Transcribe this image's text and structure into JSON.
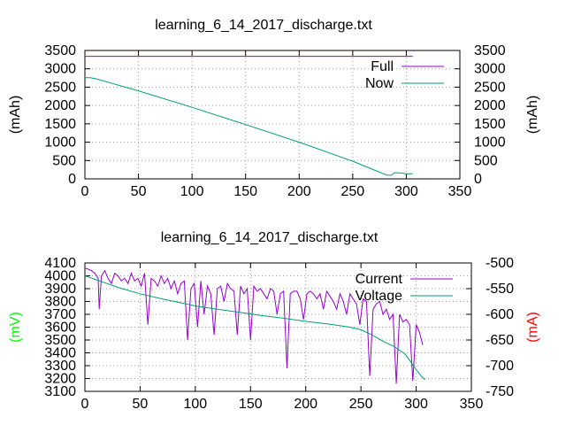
{
  "colors": {
    "full": "#9400d3",
    "now": "#009e73",
    "current": "#9400d3",
    "voltage": "#009e73",
    "mv_label": "#00ff00",
    "ma_label": "#ff0000"
  },
  "chart_data": [
    {
      "type": "line",
      "title": "learning_6_14_2017_discharge.txt",
      "xlabel": "",
      "ylabel": "(mAh)",
      "y2label": "(mAh)",
      "xlim": [
        0,
        350
      ],
      "ylim": [
        0,
        3500
      ],
      "y2lim": [
        0,
        3500
      ],
      "xticks": [
        "0",
        "50",
        "100",
        "150",
        "200",
        "250",
        "300",
        "350"
      ],
      "yticks": [
        "0",
        "500",
        "1000",
        "1500",
        "2000",
        "2500",
        "3000",
        "3500"
      ],
      "y2ticks": [
        "0",
        "500",
        "1000",
        "1500",
        "2000",
        "2500",
        "3000",
        "3500"
      ],
      "grid": true,
      "legend_position": "top-right",
      "series": [
        {
          "name": "Full",
          "axis": "y",
          "x": [
            0,
            306
          ],
          "values": [
            3340,
            3340
          ]
        },
        {
          "name": "Now",
          "axis": "y",
          "x": [
            0,
            5,
            10,
            50,
            100,
            150,
            200,
            250,
            282,
            286,
            289,
            295,
            300,
            306
          ],
          "values": [
            2760,
            2760,
            2730,
            2400,
            1950,
            1480,
            1000,
            480,
            100,
            100,
            170,
            160,
            140,
            140
          ]
        }
      ]
    },
    {
      "type": "line",
      "title": "learning_6_14_2017_discharge.txt",
      "xlabel": "",
      "ylabel": "(mV)",
      "y2label": "(mA)",
      "xlim": [
        0,
        350
      ],
      "ylim": [
        3100,
        4100
      ],
      "y2lim": [
        -750,
        -500
      ],
      "xticks": [
        "0",
        "50",
        "100",
        "150",
        "200",
        "250",
        "300",
        "350"
      ],
      "yticks": [
        "3100",
        "3200",
        "3300",
        "3400",
        "3500",
        "3600",
        "3700",
        "3800",
        "3900",
        "4000",
        "4100"
      ],
      "y2ticks": [
        "-750",
        "-700",
        "-650",
        "-600",
        "-550",
        "-500"
      ],
      "grid": true,
      "legend_position": "top-right",
      "series": [
        {
          "name": "Current",
          "axis": "y2",
          "x": [
            0,
            3,
            6,
            9,
            12,
            13,
            15,
            18,
            21,
            24,
            27,
            30,
            33,
            36,
            39,
            42,
            45,
            48,
            51,
            54,
            57,
            60,
            63,
            66,
            69,
            72,
            75,
            78,
            81,
            84,
            87,
            90,
            93,
            96,
            99,
            102,
            105,
            108,
            111,
            114,
            117,
            120,
            123,
            126,
            129,
            132,
            135,
            138,
            141,
            144,
            147,
            150,
            153,
            156,
            159,
            162,
            165,
            168,
            171,
            174,
            177,
            180,
            183,
            186,
            189,
            192,
            195,
            198,
            201,
            204,
            207,
            210,
            213,
            216,
            219,
            222,
            225,
            228,
            231,
            234,
            237,
            240,
            243,
            246,
            249,
            252,
            255,
            258,
            261,
            264,
            267,
            270,
            273,
            276,
            279,
            282,
            285,
            288,
            291,
            294,
            297,
            300,
            303,
            306
          ],
          "values": [
            -510,
            -512,
            -515,
            -520,
            -530,
            -590,
            -525,
            -515,
            -530,
            -540,
            -520,
            -525,
            -535,
            -530,
            -540,
            -520,
            -535,
            -530,
            -545,
            -520,
            -620,
            -530,
            -535,
            -545,
            -525,
            -540,
            -530,
            -550,
            -535,
            -560,
            -540,
            -535,
            -650,
            -550,
            -540,
            -625,
            -535,
            -600,
            -545,
            -560,
            -640,
            -550,
            -545,
            -575,
            -540,
            -550,
            -555,
            -640,
            -545,
            -560,
            -550,
            -650,
            -545,
            -555,
            -550,
            -560,
            -570,
            -550,
            -555,
            -600,
            -560,
            -555,
            -705,
            -560,
            -555,
            -555,
            -570,
            -610,
            -560,
            -555,
            -560,
            -570,
            -560,
            -590,
            -555,
            -565,
            -575,
            -590,
            -560,
            -575,
            -600,
            -560,
            -570,
            -580,
            -620,
            -570,
            -575,
            -720,
            -590,
            -580,
            -575,
            -600,
            -590,
            -610,
            -600,
            -735,
            -600,
            -615,
            -610,
            -620,
            -730,
            -620,
            -635,
            -660
          ]
        },
        {
          "name": "Voltage",
          "axis": "y",
          "x": [
            0,
            5,
            10,
            20,
            30,
            50,
            70,
            90,
            100,
            120,
            140,
            160,
            180,
            200,
            220,
            240,
            250,
            260,
            270,
            280,
            290,
            295,
            300,
            305,
            308
          ],
          "values": [
            4000,
            3985,
            3970,
            3940,
            3910,
            3860,
            3820,
            3785,
            3765,
            3740,
            3715,
            3690,
            3670,
            3645,
            3625,
            3600,
            3580,
            3540,
            3490,
            3450,
            3390,
            3330,
            3270,
            3215,
            3190
          ]
        }
      ]
    }
  ]
}
